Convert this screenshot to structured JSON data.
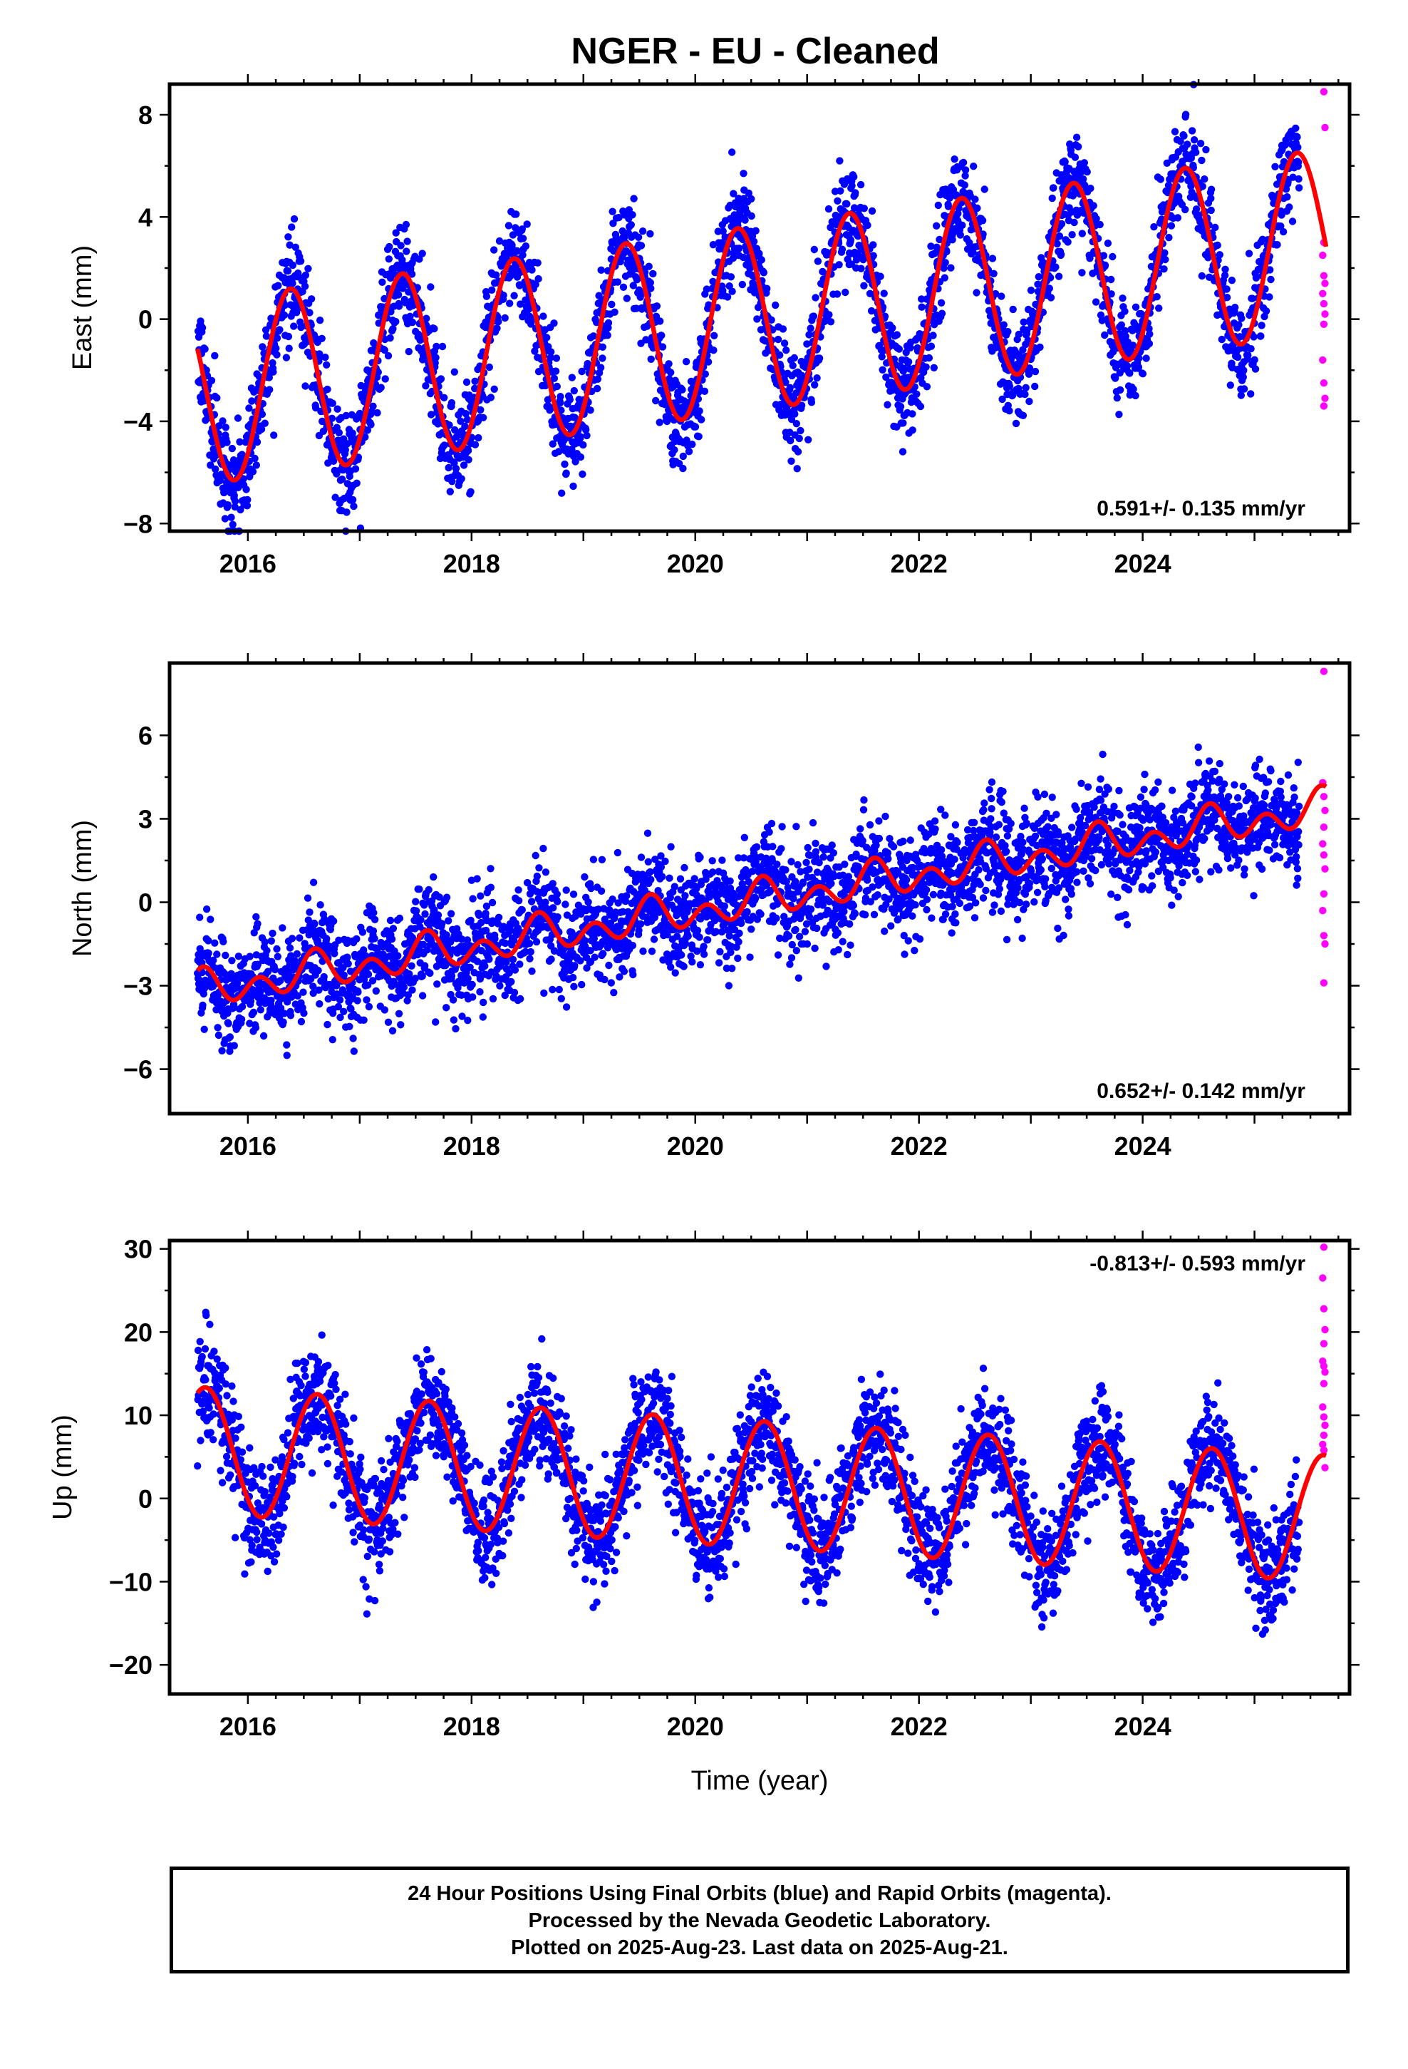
{
  "title": "NGER  - EU - Cleaned",
  "colors": {
    "final": "#0000ff",
    "rapid": "#ff00ff",
    "model": "#ff0000",
    "axis": "#000000"
  },
  "footer": {
    "line1": "24 Hour Positions Using Final Orbits (blue) and Rapid Orbits (magenta).",
    "line2": "Processed by the Nevada Geodetic Laboratory.",
    "line3": "Plotted on 2025-Aug-23. Last data on 2025-Aug-21."
  },
  "chart_data": [
    {
      "type": "scatter",
      "ylabel": "East (mm)",
      "xlabel": "",
      "xlim": [
        2015.3,
        2025.85
      ],
      "ylim": [
        -8.3,
        9.2
      ],
      "xticks": [
        2016,
        2018,
        2020,
        2022,
        2024
      ],
      "yticks": [
        -8,
        -4,
        0,
        4,
        8
      ],
      "ytick_labels": [
        "−8",
        "−4",
        "0",
        "4",
        "8"
      ],
      "rate_label": "0.591+/- 0.135 mm/yr",
      "rate_position": "bottom-right",
      "series": [
        {
          "role": "final",
          "time_range": [
            2015.55,
            2025.4
          ],
          "trend_mm_per_yr": 0.591,
          "offset_at_start": -2.9,
          "annual_amplitude": 3.6,
          "annual_peak_phase": 0.38,
          "semiannual_amplitude": 0.0,
          "scatter": 1.0
        },
        {
          "role": "rapid",
          "time_range": [
            2025.4,
            2025.64
          ],
          "points": [
            [
              2025.62,
              8.9
            ],
            [
              2025.63,
              7.5
            ],
            [
              2025.62,
              3.0
            ],
            [
              2025.61,
              2.5
            ],
            [
              2025.62,
              1.7
            ],
            [
              2025.63,
              1.4
            ],
            [
              2025.61,
              1.0
            ],
            [
              2025.62,
              0.6
            ],
            [
              2025.63,
              0.2
            ],
            [
              2025.62,
              -0.2
            ],
            [
              2025.61,
              -1.6
            ],
            [
              2025.62,
              -2.5
            ],
            [
              2025.63,
              -3.1
            ],
            [
              2025.62,
              -3.4
            ]
          ]
        },
        {
          "role": "model",
          "time_range": [
            2015.55,
            2025.64
          ]
        }
      ]
    },
    {
      "type": "scatter",
      "ylabel": "North (mm)",
      "xlabel": "",
      "xlim": [
        2015.3,
        2025.85
      ],
      "ylim": [
        -7.6,
        8.6
      ],
      "xticks": [
        2016,
        2018,
        2020,
        2022,
        2024
      ],
      "yticks": [
        -6,
        -3,
        0,
        3,
        6
      ],
      "ytick_labels": [
        "−6",
        "−3",
        "0",
        "3",
        "6"
      ],
      "rate_label": "0.652+/- 0.142 mm/yr",
      "rate_position": "bottom-right",
      "series": [
        {
          "role": "final",
          "time_range": [
            2015.55,
            2025.4
          ],
          "trend_mm_per_yr": 0.652,
          "offset_at_start": -3.2,
          "annual_amplitude": 0.35,
          "annual_peak_phase": 0.6,
          "semiannual_amplitude": 0.5,
          "scatter": 0.9
        },
        {
          "role": "rapid",
          "time_range": [
            2025.4,
            2025.64
          ],
          "points": [
            [
              2025.62,
              8.3
            ],
            [
              2025.61,
              4.3
            ],
            [
              2025.62,
              3.8
            ],
            [
              2025.63,
              3.3
            ],
            [
              2025.62,
              2.7
            ],
            [
              2025.61,
              2.1
            ],
            [
              2025.62,
              1.7
            ],
            [
              2025.63,
              1.2
            ],
            [
              2025.62,
              0.3
            ],
            [
              2025.61,
              -0.3
            ],
            [
              2025.62,
              -1.2
            ],
            [
              2025.63,
              -1.5
            ],
            [
              2025.62,
              -2.9
            ]
          ]
        },
        {
          "role": "model",
          "time_range": [
            2015.55,
            2025.64
          ]
        }
      ]
    },
    {
      "type": "scatter",
      "ylabel": "Up (mm)",
      "xlabel": "Time (year)",
      "xlim": [
        2015.3,
        2025.85
      ],
      "ylim": [
        -23.5,
        31.0
      ],
      "xticks": [
        2016,
        2018,
        2020,
        2022,
        2024
      ],
      "yticks": [
        -20,
        -10,
        0,
        10,
        20,
        30
      ],
      "ytick_labels": [
        "−20",
        "−10",
        "0",
        "10",
        "20",
        "30"
      ],
      "rate_label": "-0.813+/- 0.593 mm/yr",
      "rate_position": "top-right",
      "series": [
        {
          "role": "final",
          "time_range": [
            2015.55,
            2025.4
          ],
          "trend_mm_per_yr": -0.813,
          "offset_at_start": 5.8,
          "annual_amplitude": 7.6,
          "annual_peak_phase": 0.62,
          "semiannual_amplitude": 0.0,
          "scatter": 3.3
        },
        {
          "role": "rapid",
          "time_range": [
            2025.4,
            2025.64
          ],
          "points": [
            [
              2025.62,
              30.2
            ],
            [
              2025.61,
              26.5
            ],
            [
              2025.62,
              22.8
            ],
            [
              2025.63,
              20.3
            ],
            [
              2025.62,
              18.6
            ],
            [
              2025.61,
              16.5
            ],
            [
              2025.62,
              15.9
            ],
            [
              2025.63,
              15.2
            ],
            [
              2025.62,
              13.8
            ],
            [
              2025.61,
              11.0
            ],
            [
              2025.62,
              9.8
            ],
            [
              2025.63,
              8.8
            ],
            [
              2025.62,
              7.6
            ],
            [
              2025.61,
              6.5
            ],
            [
              2025.62,
              5.8
            ],
            [
              2025.63,
              3.7
            ]
          ]
        },
        {
          "role": "model",
          "time_range": [
            2015.55,
            2025.64
          ]
        }
      ]
    }
  ]
}
